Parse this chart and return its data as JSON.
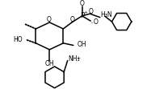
{
  "bg_color": "#ffffff",
  "line_color": "#000000",
  "lw": 1.1,
  "fig_width": 1.87,
  "fig_height": 1.11,
  "dpi": 100,
  "xlim": [
    0,
    10
  ],
  "ylim": [
    0,
    6
  ]
}
